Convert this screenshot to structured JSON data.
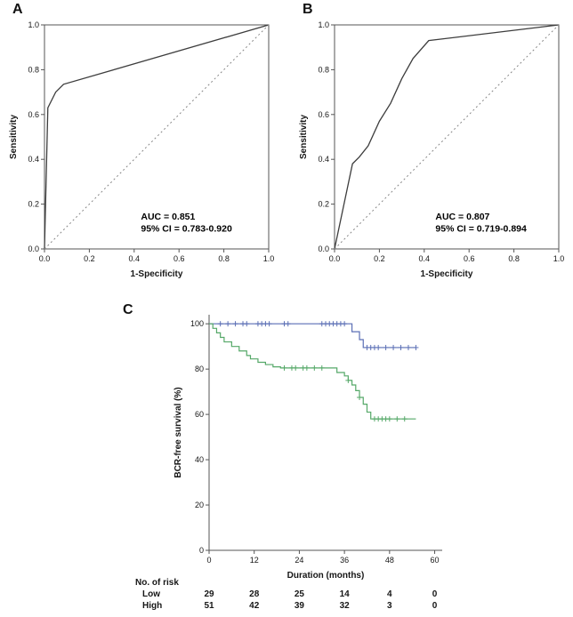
{
  "figure": {
    "background": "#ffffff",
    "panel_count": 3
  },
  "chart_data": [
    {
      "panel_label": "A",
      "type": "line",
      "title": "",
      "xlabel": "1-Specificity",
      "ylabel": "Sensitivity",
      "xlim": [
        0,
        1
      ],
      "ylim": [
        0,
        1
      ],
      "xticks": [
        0,
        0.2,
        0.4,
        0.6,
        0.8,
        1.0
      ],
      "xtick_labels": [
        "0.0",
        "0.2",
        "0.4",
        "0.6",
        "0.8",
        "1.0"
      ],
      "yticks": [
        0,
        0.2,
        0.4,
        0.6,
        0.8,
        1.0
      ],
      "ytick_labels": [
        "0.0",
        "0.2",
        "0.4",
        "0.6",
        "0.8",
        "1.0"
      ],
      "frame": "box",
      "grid": false,
      "annotation": {
        "lines": [
          "AUC = 0.851",
          "95% CI = 0.783-0.920"
        ],
        "pos": [
          0.43,
          0.13
        ]
      },
      "series": [
        {
          "name": "roc-curve",
          "color": "#3d3d3d",
          "width": 1.3,
          "points": [
            [
              0,
              0
            ],
            [
              0.015,
              0.63
            ],
            [
              0.05,
              0.7
            ],
            [
              0.07,
              0.72
            ],
            [
              0.085,
              0.735
            ],
            [
              1,
              1
            ]
          ]
        },
        {
          "name": "reference-line",
          "color": "#888888",
          "width": 1,
          "dash": true,
          "points": [
            [
              0,
              0
            ],
            [
              1,
              1
            ]
          ]
        }
      ]
    },
    {
      "panel_label": "B",
      "type": "line",
      "title": "",
      "xlabel": "1-Specificity",
      "ylabel": "Sensitivity",
      "xlim": [
        0,
        1
      ],
      "ylim": [
        0,
        1
      ],
      "xticks": [
        0,
        0.2,
        0.4,
        0.6,
        0.8,
        1.0
      ],
      "xtick_labels": [
        "0.0",
        "0.2",
        "0.4",
        "0.6",
        "0.8",
        "1.0"
      ],
      "yticks": [
        0,
        0.2,
        0.4,
        0.6,
        0.8,
        1.0
      ],
      "ytick_labels": [
        "0.0",
        "0.2",
        "0.4",
        "0.6",
        "0.8",
        "1.0"
      ],
      "frame": "box",
      "grid": false,
      "annotation": {
        "lines": [
          "AUC = 0.807",
          "95% CI = 0.719-0.894"
        ],
        "pos": [
          0.45,
          0.13
        ]
      },
      "series": [
        {
          "name": "roc-curve",
          "color": "#3d3d3d",
          "width": 1.3,
          "points": [
            [
              0,
              0
            ],
            [
              0.08,
              0.38
            ],
            [
              0.11,
              0.41
            ],
            [
              0.15,
              0.46
            ],
            [
              0.2,
              0.57
            ],
            [
              0.25,
              0.65
            ],
            [
              0.3,
              0.76
            ],
            [
              0.35,
              0.85
            ],
            [
              0.42,
              0.93
            ],
            [
              1,
              1
            ]
          ]
        },
        {
          "name": "reference-line",
          "color": "#888888",
          "width": 1,
          "dash": true,
          "points": [
            [
              0,
              0
            ],
            [
              1,
              1
            ]
          ]
        }
      ]
    },
    {
      "panel_label": "C",
      "type": "line",
      "title": "",
      "xlabel": "Duration (months)",
      "ylabel": "BCR-free survival (%)",
      "xlim": [
        0,
        62
      ],
      "ylim": [
        0,
        104
      ],
      "xticks": [
        0,
        12,
        24,
        36,
        48,
        60
      ],
      "xtick_labels": [
        "0",
        "12",
        "24",
        "36",
        "48",
        "60"
      ],
      "yticks": [
        0,
        20,
        40,
        60,
        80,
        100
      ],
      "ytick_labels": [
        "0",
        "20",
        "40",
        "60",
        "80",
        "100"
      ],
      "frame": "axes",
      "grid": false,
      "series": [
        {
          "name": "low-risk-survival",
          "label": "Low",
          "color": "#5b6fb5",
          "width": 1.2,
          "step": true,
          "points": [
            [
              0,
              100
            ],
            [
              37,
              100
            ],
            [
              38,
              96.5
            ],
            [
              40,
              93
            ],
            [
              41,
              89.5
            ],
            [
              55,
              89.5
            ]
          ],
          "censors": [
            [
              3,
              100
            ],
            [
              5,
              100
            ],
            [
              7,
              100
            ],
            [
              9,
              100
            ],
            [
              10,
              100
            ],
            [
              13,
              100
            ],
            [
              14,
              100
            ],
            [
              15,
              100
            ],
            [
              16,
              100
            ],
            [
              20,
              100
            ],
            [
              21,
              100
            ],
            [
              30,
              100
            ],
            [
              31,
              100
            ],
            [
              32,
              100
            ],
            [
              33,
              100
            ],
            [
              34,
              100
            ],
            [
              35,
              100
            ],
            [
              36,
              100
            ],
            [
              42,
              89.5
            ],
            [
              43,
              89.5
            ],
            [
              44,
              89.5
            ],
            [
              45,
              89.5
            ],
            [
              47,
              89.5
            ],
            [
              49,
              89.5
            ],
            [
              51,
              89.5
            ],
            [
              53,
              89.5
            ],
            [
              55,
              89.5
            ]
          ]
        },
        {
          "name": "high-risk-survival",
          "label": "High",
          "color": "#55a868",
          "width": 1.2,
          "step": true,
          "points": [
            [
              0,
              100
            ],
            [
              1,
              98
            ],
            [
              2,
              96
            ],
            [
              3,
              94
            ],
            [
              4,
              92
            ],
            [
              6,
              90
            ],
            [
              8,
              88
            ],
            [
              10,
              86
            ],
            [
              11,
              84.5
            ],
            [
              13,
              83
            ],
            [
              15,
              82
            ],
            [
              17,
              81
            ],
            [
              19,
              80.5
            ],
            [
              33,
              80.5
            ],
            [
              34,
              78.5
            ],
            [
              36,
              77
            ],
            [
              37,
              75
            ],
            [
              38,
              73
            ],
            [
              39,
              70.5
            ],
            [
              40,
              67.5
            ],
            [
              41,
              64.5
            ],
            [
              42,
              61
            ],
            [
              43,
              58
            ],
            [
              55,
              58
            ]
          ],
          "censors": [
            [
              20,
              80.5
            ],
            [
              22,
              80.5
            ],
            [
              23,
              80.5
            ],
            [
              25,
              80.5
            ],
            [
              26,
              80.5
            ],
            [
              28,
              80.5
            ],
            [
              30,
              80.5
            ],
            [
              37,
              75
            ],
            [
              40,
              67.5
            ],
            [
              44,
              58
            ],
            [
              45,
              58
            ],
            [
              46,
              58
            ],
            [
              47,
              58
            ],
            [
              48,
              58
            ],
            [
              50,
              58
            ],
            [
              52,
              58
            ]
          ]
        }
      ],
      "risk_table": {
        "title": "No. of risk",
        "times": [
          0,
          12,
          24,
          36,
          48,
          60
        ],
        "rows": [
          {
            "label": "Low",
            "values": [
              29,
              28,
              25,
              14,
              4,
              0
            ]
          },
          {
            "label": "High",
            "values": [
              51,
              42,
              39,
              32,
              3,
              0
            ]
          }
        ]
      }
    }
  ]
}
